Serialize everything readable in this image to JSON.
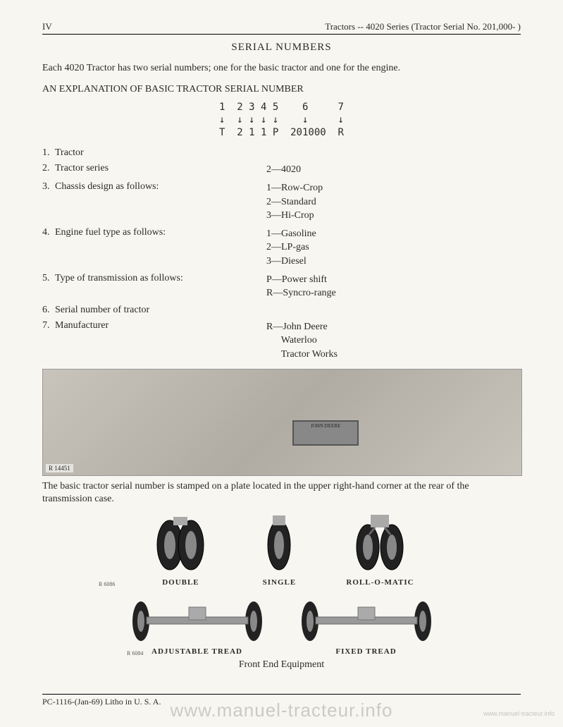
{
  "header": {
    "page_num": "IV",
    "title": "Tractors -- 4020 Series (Tractor Serial No. 201,000-           )"
  },
  "title": "SERIAL NUMBERS",
  "intro": "Each 4020 Tractor has two serial numbers; one for the basic tractor and one for the engine.",
  "explain_title": "AN EXPLANATION OF BASIC TRACTOR SERIAL NUMBER",
  "diagram": {
    "row1": "1  2 3 4 5    6     7",
    "row2": "↓  ↓ ↓ ↓ ↓    ↓     ↓",
    "row3": "T  2 1 1 P  201000  R"
  },
  "items": [
    {
      "num": "1.",
      "label": "Tractor",
      "values": []
    },
    {
      "num": "2.",
      "label": "Tractor series",
      "values": [
        "2—4020"
      ]
    },
    {
      "num": "3.",
      "label": "Chassis design as follows:",
      "values": [
        "1—Row-Crop",
        "2—Standard",
        "3—Hi-Crop"
      ]
    },
    {
      "num": "4.",
      "label": "Engine fuel type as follows:",
      "values": [
        "1—Gasoline",
        "2—LP-gas",
        "3—Diesel"
      ]
    },
    {
      "num": "5.",
      "label": "Type of transmission as follows:",
      "values": [
        "P—Power shift",
        "R—Syncro-range"
      ]
    },
    {
      "num": "6.",
      "label": "Serial number of tractor",
      "values": []
    },
    {
      "num": "7.",
      "label": "Manufacturer",
      "values": [
        "R—John Deere",
        "      Waterloo",
        "      Tractor Works"
      ]
    }
  ],
  "photo": {
    "ref": "R 14451",
    "plate_text": "JOHN DEERE"
  },
  "caption": "The basic tractor serial number is stamped on a plate located in the upper right-hand corner at the rear of the transmission case.",
  "wheels": {
    "ref": "R 6086",
    "items": [
      "DOUBLE",
      "SINGLE",
      "ROLL-O-MATIC"
    ]
  },
  "axles": {
    "ref": "R 6084",
    "items": [
      "ADJUSTABLE TREAD",
      "FIXED TREAD"
    ]
  },
  "section_title": "Front End Equipment",
  "footer": "PC-1116-(Jan-69)   Litho in U. S. A.",
  "watermark": "www.manuel-tracteur.info",
  "watermark_small": "www.manuel-tracteur.info"
}
